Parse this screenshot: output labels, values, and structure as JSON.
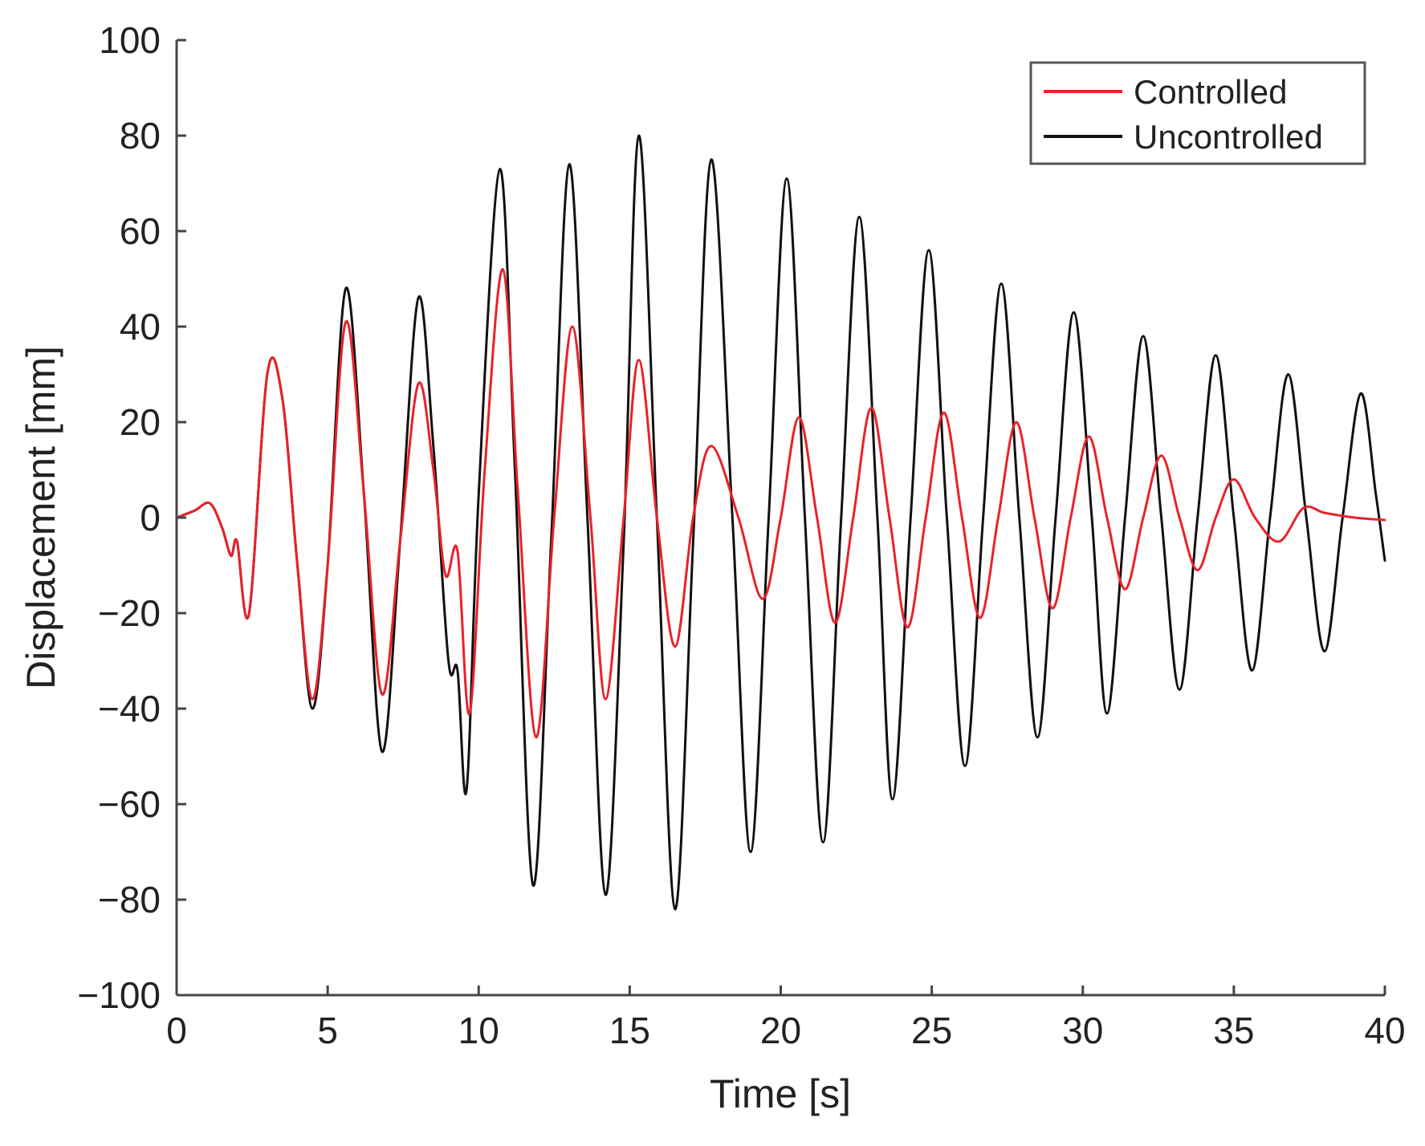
{
  "chart_data": {
    "type": "line",
    "title": "",
    "xlabel": "Time [s]",
    "ylabel": "Displacement [mm]",
    "xlim": [
      0,
      40
    ],
    "ylim": [
      -100,
      100
    ],
    "xticks": [
      0,
      5,
      10,
      15,
      20,
      25,
      30,
      35,
      40
    ],
    "xtick_labels": [
      "0",
      "5",
      "10",
      "15",
      "20",
      "25",
      "30",
      "35",
      "40"
    ],
    "yticks": [
      100,
      80,
      60,
      40,
      20,
      0,
      -20,
      -40,
      -60,
      -80,
      -100
    ],
    "ytick_labels": [
      "100",
      "80",
      "60",
      "40",
      "20",
      "0",
      "−20",
      "−40",
      "−60",
      "−80",
      "−100"
    ],
    "grid": false,
    "legend_position": "top-right",
    "series": [
      {
        "name": "Uncontrolled",
        "color": "#111111",
        "points": [
          [
            0,
            0
          ],
          [
            0.6,
            1.5
          ],
          [
            1.1,
            3
          ],
          [
            1.5,
            -2
          ],
          [
            1.8,
            -8
          ],
          [
            2.0,
            -5
          ],
          [
            2.4,
            -20
          ],
          [
            3.0,
            30
          ],
          [
            3.5,
            25
          ],
          [
            4.0,
            -10
          ],
          [
            4.5,
            -40
          ],
          [
            5.0,
            -10
          ],
          [
            5.6,
            48
          ],
          [
            6.2,
            5
          ],
          [
            6.8,
            -49
          ],
          [
            7.4,
            -5
          ],
          [
            8.0,
            46
          ],
          [
            8.5,
            15
          ],
          [
            9.0,
            -30
          ],
          [
            9.3,
            -32
          ],
          [
            9.6,
            -57
          ],
          [
            10.0,
            5
          ],
          [
            10.7,
            73
          ],
          [
            11.2,
            10
          ],
          [
            11.8,
            -77
          ],
          [
            12.4,
            -5
          ],
          [
            13.0,
            74
          ],
          [
            13.6,
            0
          ],
          [
            14.2,
            -79
          ],
          [
            14.8,
            -5
          ],
          [
            15.3,
            80
          ],
          [
            15.9,
            0
          ],
          [
            16.5,
            -82
          ],
          [
            17.1,
            -5
          ],
          [
            17.7,
            75
          ],
          [
            18.4,
            0
          ],
          [
            19.0,
            -70
          ],
          [
            19.6,
            0
          ],
          [
            20.2,
            71
          ],
          [
            20.8,
            0
          ],
          [
            21.4,
            -68
          ],
          [
            22.0,
            0
          ],
          [
            22.6,
            63
          ],
          [
            23.2,
            0
          ],
          [
            23.7,
            -59
          ],
          [
            24.3,
            0
          ],
          [
            24.9,
            56
          ],
          [
            25.5,
            0
          ],
          [
            26.1,
            -52
          ],
          [
            26.7,
            0
          ],
          [
            27.3,
            49
          ],
          [
            27.9,
            0
          ],
          [
            28.5,
            -46
          ],
          [
            29.1,
            0
          ],
          [
            29.7,
            43
          ],
          [
            30.3,
            0
          ],
          [
            30.8,
            -41
          ],
          [
            31.4,
            0
          ],
          [
            32.0,
            38
          ],
          [
            32.6,
            0
          ],
          [
            33.2,
            -36
          ],
          [
            33.8,
            0
          ],
          [
            34.4,
            34
          ],
          [
            35.0,
            0
          ],
          [
            35.6,
            -32
          ],
          [
            36.2,
            0
          ],
          [
            36.8,
            30
          ],
          [
            37.4,
            0
          ],
          [
            38.0,
            -28
          ],
          [
            38.6,
            0
          ],
          [
            39.2,
            26
          ],
          [
            39.7,
            5
          ],
          [
            40.0,
            -9
          ]
        ]
      },
      {
        "name": "Controlled",
        "color": "#e8222a",
        "points": [
          [
            0,
            0
          ],
          [
            0.6,
            1.5
          ],
          [
            1.1,
            3
          ],
          [
            1.5,
            -2
          ],
          [
            1.8,
            -8
          ],
          [
            2.0,
            -5
          ],
          [
            2.4,
            -20
          ],
          [
            3.0,
            30
          ],
          [
            3.5,
            25
          ],
          [
            4.0,
            -10
          ],
          [
            4.5,
            -38
          ],
          [
            5.0,
            -10
          ],
          [
            5.6,
            41
          ],
          [
            6.2,
            5
          ],
          [
            6.8,
            -37
          ],
          [
            7.4,
            -5
          ],
          [
            8.0,
            28
          ],
          [
            8.5,
            10
          ],
          [
            8.9,
            -12
          ],
          [
            9.3,
            -7
          ],
          [
            9.7,
            -41
          ],
          [
            10.2,
            10
          ],
          [
            10.8,
            52
          ],
          [
            11.3,
            5
          ],
          [
            11.9,
            -46
          ],
          [
            12.5,
            0
          ],
          [
            13.1,
            40
          ],
          [
            13.7,
            0
          ],
          [
            14.2,
            -38
          ],
          [
            14.8,
            0
          ],
          [
            15.3,
            33
          ],
          [
            15.9,
            0
          ],
          [
            16.5,
            -27
          ],
          [
            17.1,
            0
          ],
          [
            17.7,
            15
          ],
          [
            18.6,
            0
          ],
          [
            19.4,
            -17
          ],
          [
            20.0,
            0
          ],
          [
            20.6,
            21
          ],
          [
            21.2,
            0
          ],
          [
            21.8,
            -22
          ],
          [
            22.4,
            0
          ],
          [
            23.0,
            23
          ],
          [
            23.6,
            0
          ],
          [
            24.2,
            -23
          ],
          [
            24.8,
            0
          ],
          [
            25.4,
            22
          ],
          [
            26.0,
            0
          ],
          [
            26.6,
            -21
          ],
          [
            27.2,
            0
          ],
          [
            27.8,
            20
          ],
          [
            28.4,
            0
          ],
          [
            29.0,
            -19
          ],
          [
            29.6,
            0
          ],
          [
            30.2,
            17
          ],
          [
            30.8,
            0
          ],
          [
            31.4,
            -15
          ],
          [
            32.0,
            0
          ],
          [
            32.6,
            13
          ],
          [
            33.2,
            0
          ],
          [
            33.8,
            -11
          ],
          [
            34.4,
            0
          ],
          [
            35.0,
            8
          ],
          [
            35.7,
            0
          ],
          [
            36.5,
            -5
          ],
          [
            37.3,
            2
          ],
          [
            38.0,
            1
          ],
          [
            39.0,
            0
          ],
          [
            40.0,
            -0.5
          ]
        ]
      }
    ]
  }
}
